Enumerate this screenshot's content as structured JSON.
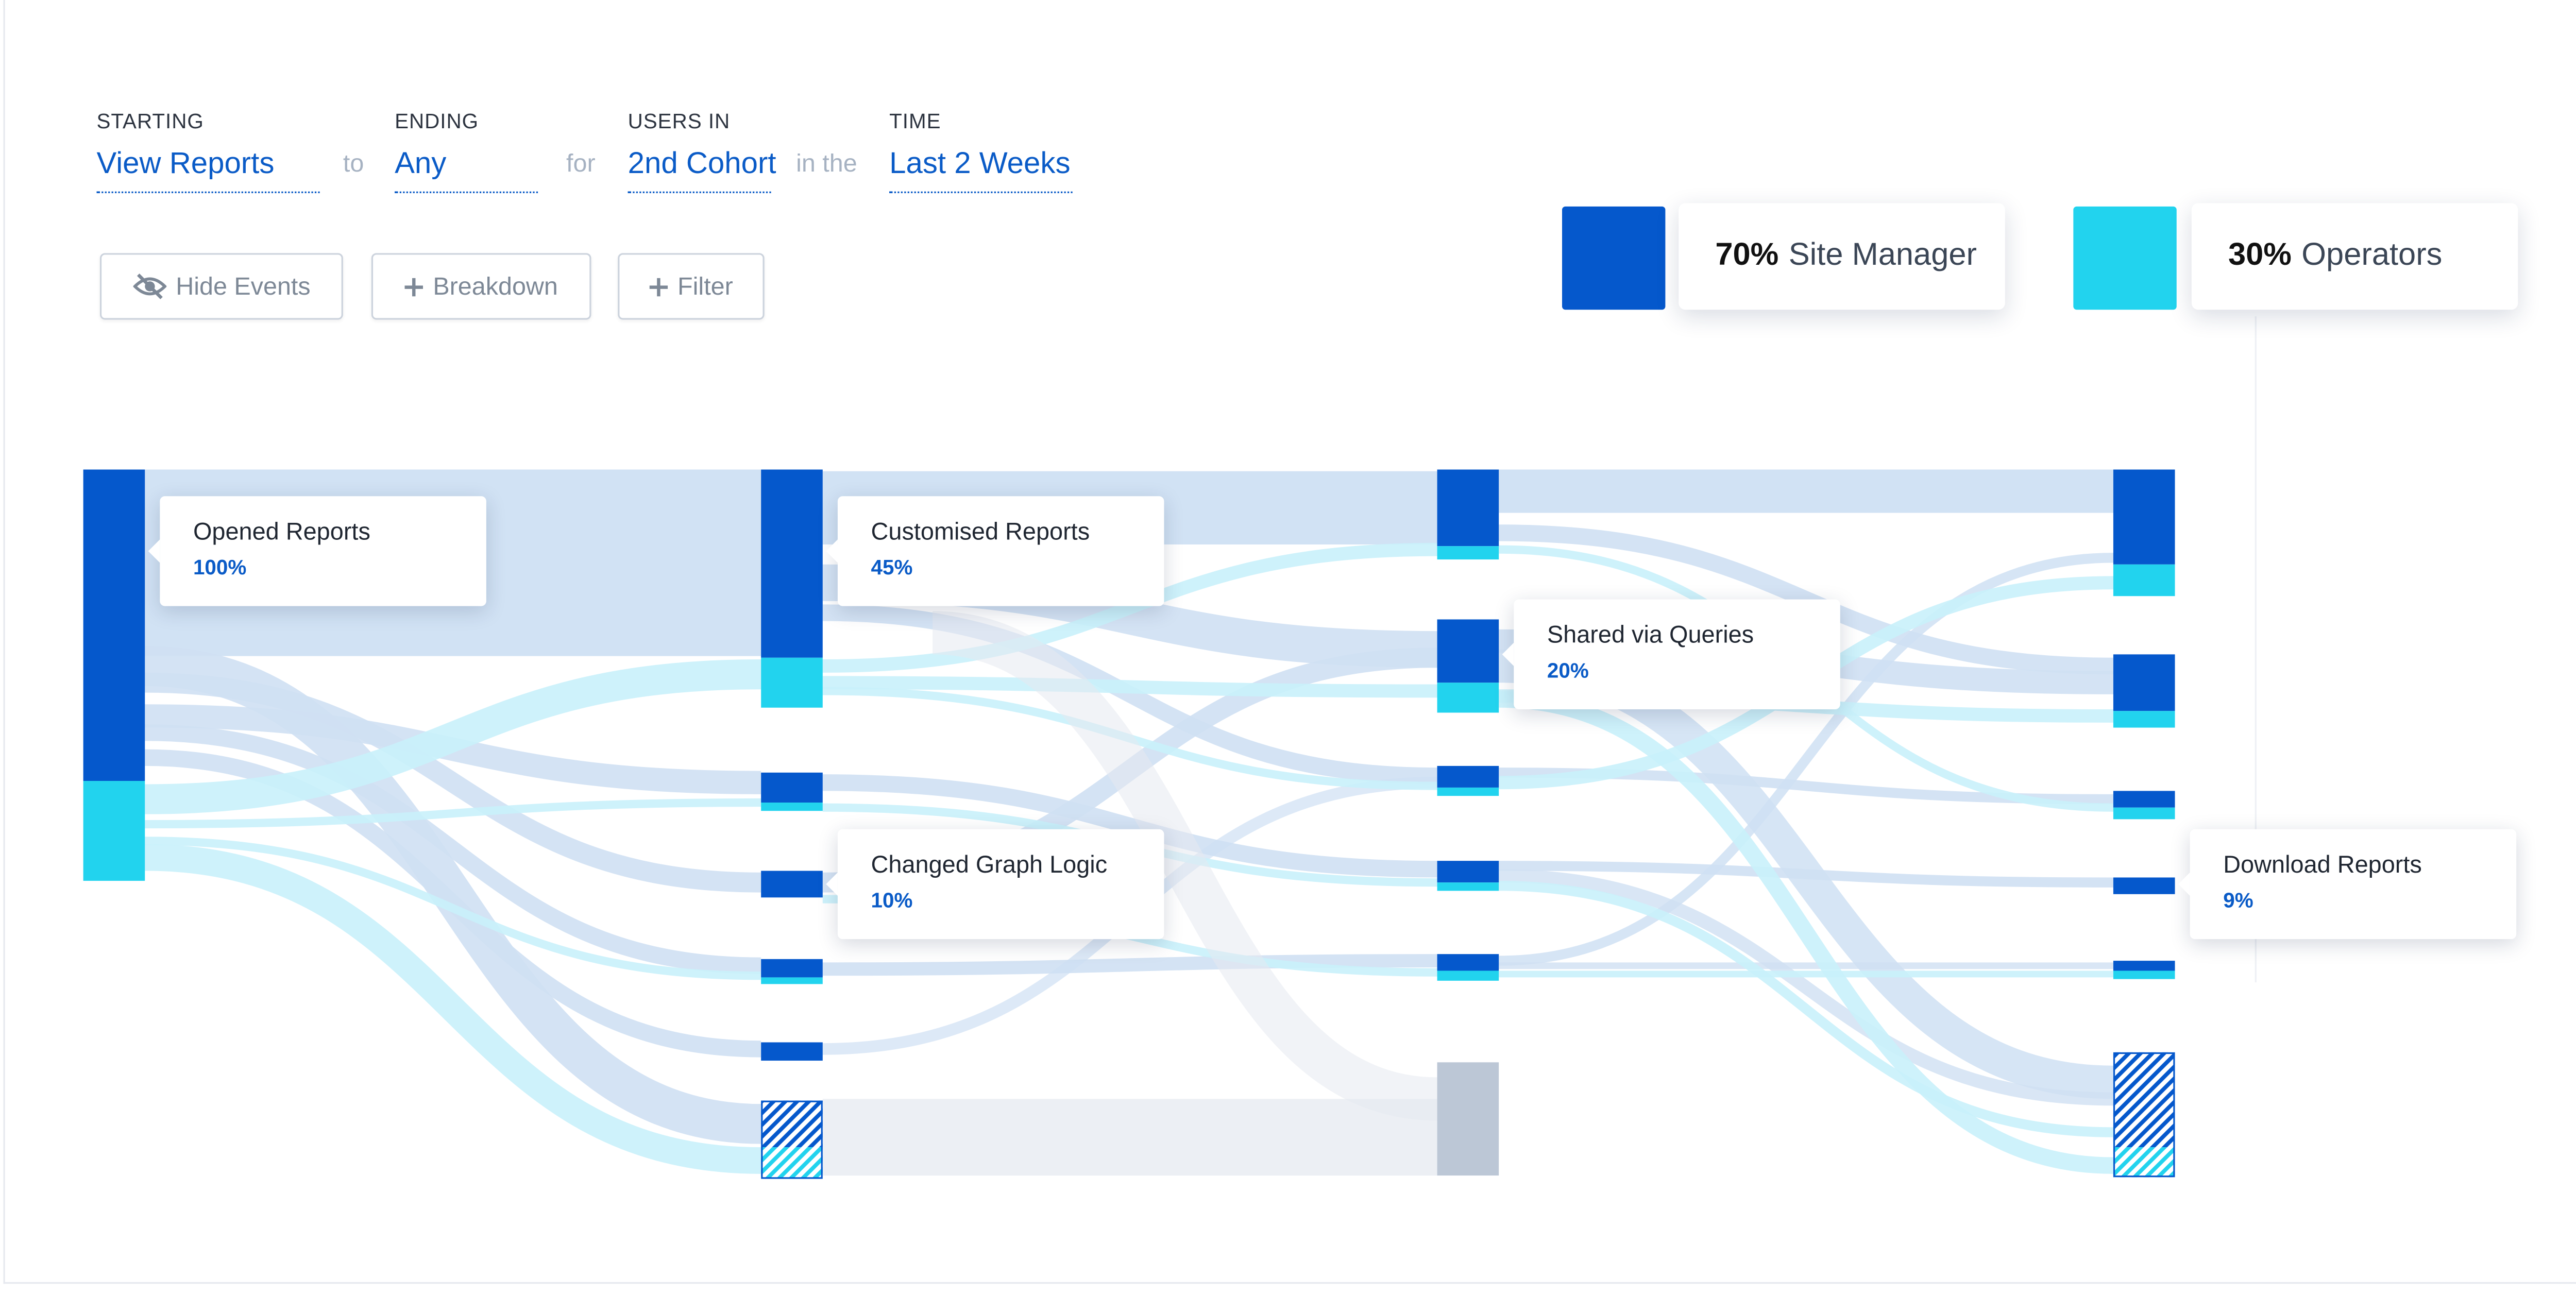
{
  "query": {
    "starting": {
      "label": "STARTING",
      "value": "View Reports"
    },
    "ending": {
      "label": "ENDING",
      "value": "Any"
    },
    "users_in": {
      "label": "USERS IN",
      "value": "2nd Cohort"
    },
    "time": {
      "label": "TIME",
      "value": "Last 2 Weeks"
    },
    "connectors": {
      "to": "to",
      "for": "for",
      "in_the": "in the"
    }
  },
  "actions": {
    "hide_events": "Hide Events",
    "breakdown": "Breakdown",
    "filter": "Filter"
  },
  "legend": [
    {
      "percent": "70%",
      "name": "Site Manager",
      "color": "#0558cc"
    },
    {
      "percent": "30%",
      "name": "Operators",
      "color": "#22d3ee"
    }
  ],
  "colors": {
    "dark": "#0558cc",
    "light": "#22d3ee",
    "link_dark": "#cfe0f3",
    "link_light": "#c9f1fb",
    "dropoff": "#bcc7d6"
  },
  "node_labels": [
    {
      "name": "Opened Reports",
      "percent": "100%"
    },
    {
      "name": "Customised Reports",
      "percent": "45%"
    },
    {
      "name": "Changed Graph Logic",
      "percent": "10%"
    },
    {
      "name": "Shared via Queries",
      "percent": "20%"
    },
    {
      "name": "Download Reports",
      "percent": "9%"
    }
  ]
}
